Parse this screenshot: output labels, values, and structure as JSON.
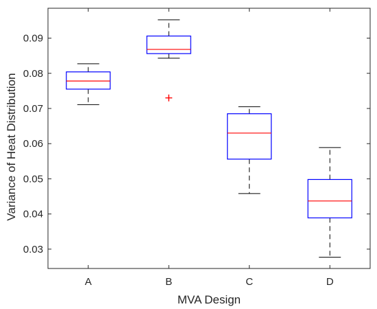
{
  "chart_data": {
    "type": "box",
    "title": "",
    "xlabel": "MVA Design",
    "ylabel": "Variance of Heat Distribution",
    "ylim": [
      0.0245,
      0.0985
    ],
    "yticks": [
      0.03,
      0.04,
      0.05,
      0.06,
      0.07,
      0.08,
      0.09
    ],
    "ytick_labels": [
      "0.03",
      "0.04",
      "0.05",
      "0.06",
      "0.07",
      "0.08",
      "0.09"
    ],
    "grid": false,
    "categories": [
      "A",
      "B",
      "C",
      "D"
    ],
    "boxes": [
      {
        "category": "A",
        "whisker_low": 0.0711,
        "q1": 0.0755,
        "median": 0.0778,
        "q3": 0.0804,
        "whisker_high": 0.0827,
        "outliers": []
      },
      {
        "category": "B",
        "whisker_low": 0.0843,
        "q1": 0.0856,
        "median": 0.0868,
        "q3": 0.0906,
        "whisker_high": 0.0952,
        "outliers": [
          0.073
        ]
      },
      {
        "category": "C",
        "whisker_low": 0.0458,
        "q1": 0.0556,
        "median": 0.063,
        "q3": 0.0685,
        "whisker_high": 0.0705,
        "outliers": []
      },
      {
        "category": "D",
        "whisker_low": 0.0277,
        "q1": 0.0389,
        "median": 0.0437,
        "q3": 0.0498,
        "whisker_high": 0.0589,
        "outliers": []
      }
    ],
    "colors": {
      "box": "#0000ff",
      "median": "#ff0000",
      "whisker": "#000000",
      "outlier": "#ff0000",
      "axis": "#262626"
    }
  }
}
